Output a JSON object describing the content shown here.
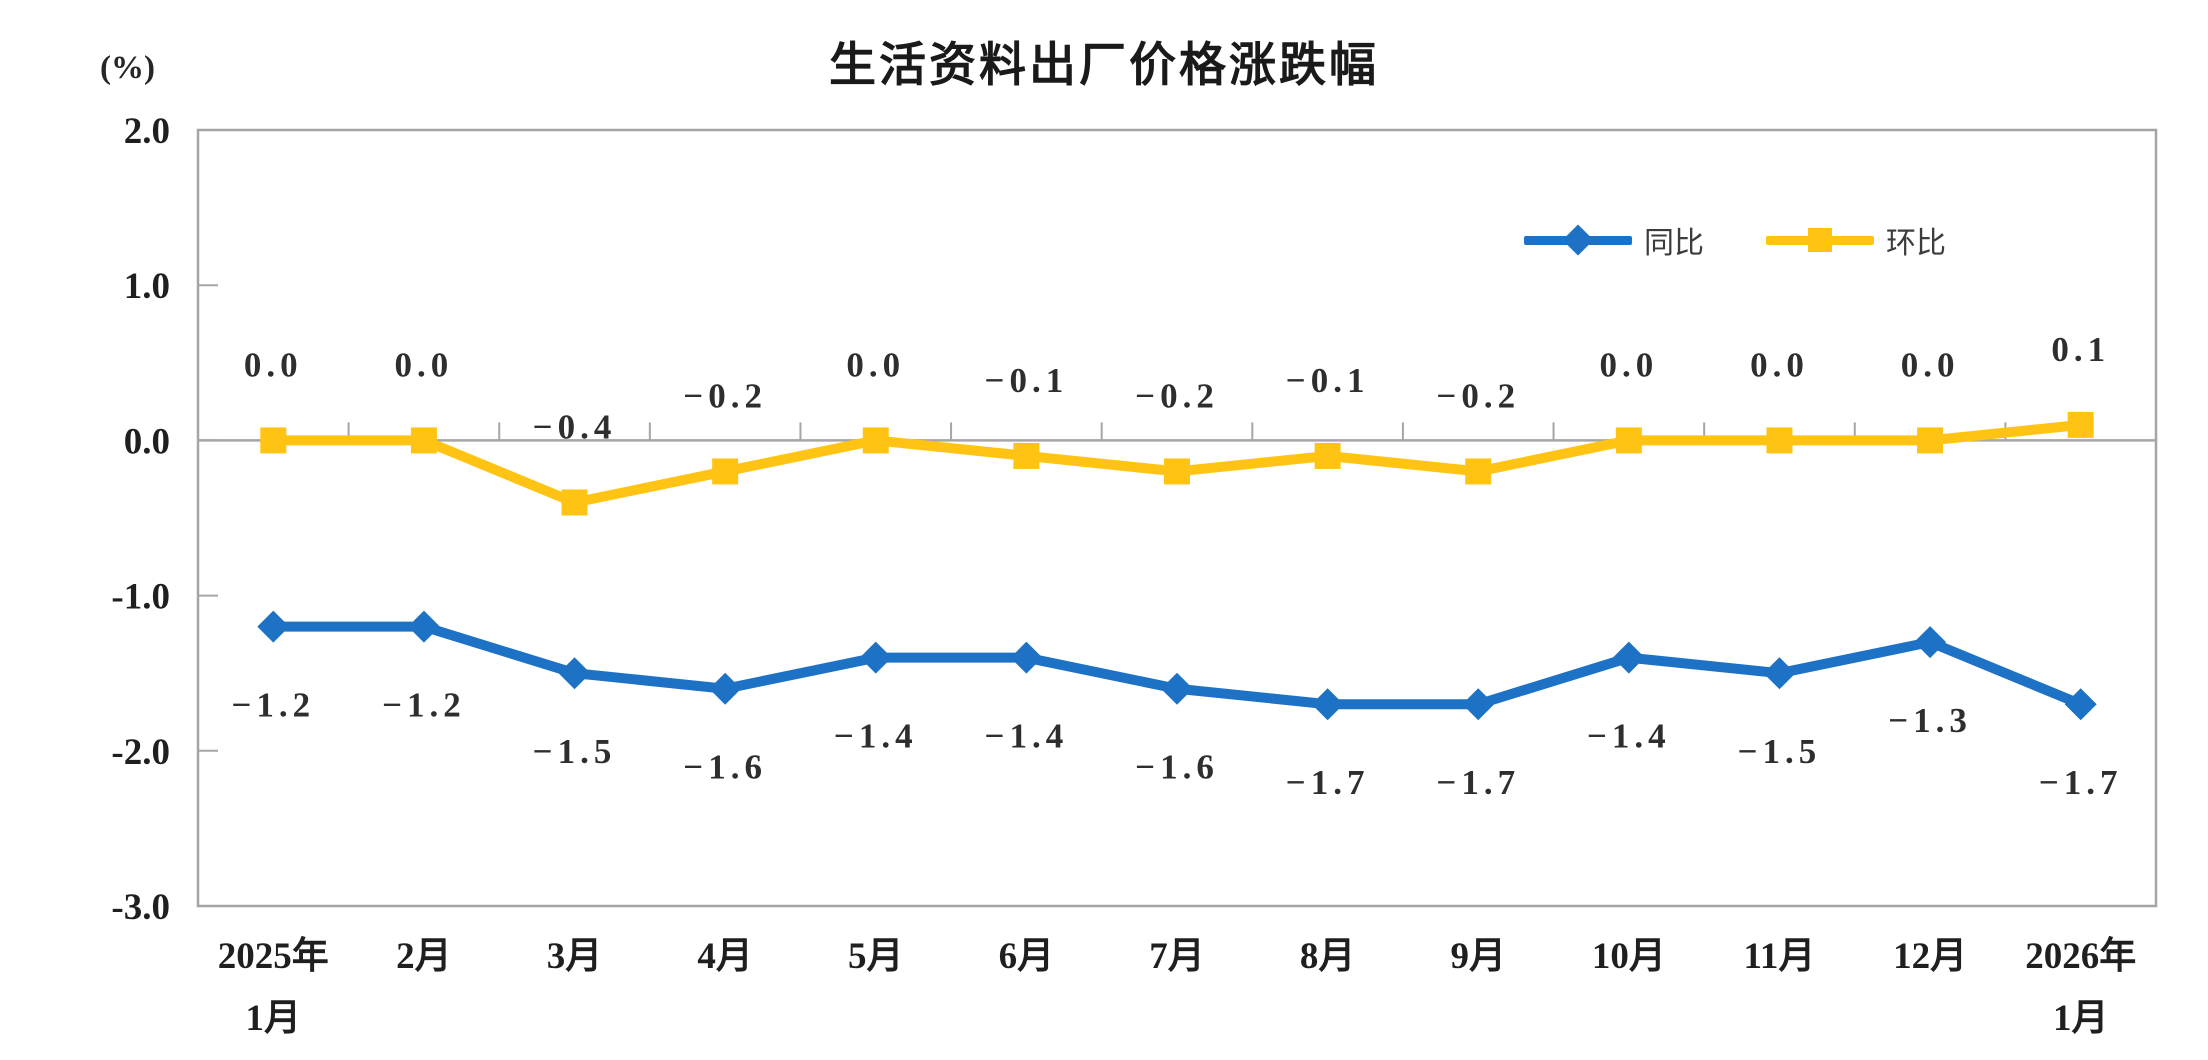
{
  "title": "生活资料出厂价格涨跌幅",
  "y_axis_unit": "(%)",
  "legend": {
    "items": [
      {
        "label": "同比",
        "marker": "diamond",
        "color": "#1e72c6"
      },
      {
        "label": "环比",
        "marker": "square",
        "color": "#ffc413"
      }
    ]
  },
  "colors": {
    "tongbi_blue": "#1e72c6",
    "huanbi_yellow": "#ffc413",
    "axis_gray": "#a5a5a5",
    "label_text": "#2e2e2e"
  },
  "chart_data": {
    "type": "line",
    "title": "生活资料出厂价格涨跌幅",
    "ylabel": "(%)",
    "xlabel": "",
    "grid": false,
    "legend_position": "top-right-inside",
    "ylim": [
      -3.0,
      2.0
    ],
    "y_ticks": [
      2.0,
      1.0,
      0.0,
      -1.0,
      -2.0,
      -3.0
    ],
    "categories": [
      "2025年|1月",
      "2月",
      "3月",
      "4月",
      "5月",
      "6月",
      "7月",
      "8月",
      "9月",
      "10月",
      "11月",
      "12月",
      "2026年|1月"
    ],
    "series": [
      {
        "name": "同比",
        "color": "#1e72c6",
        "marker": "diamond",
        "label_side": "below",
        "values": [
          -1.2,
          -1.2,
          -1.5,
          -1.6,
          -1.4,
          -1.4,
          -1.6,
          -1.7,
          -1.7,
          -1.4,
          -1.5,
          -1.3,
          -1.7
        ]
      },
      {
        "name": "环比",
        "color": "#ffc413",
        "marker": "square",
        "label_side": "above",
        "values": [
          0.0,
          0.0,
          -0.4,
          -0.2,
          0.0,
          -0.1,
          -0.2,
          -0.1,
          -0.2,
          0.0,
          0.0,
          0.0,
          0.1
        ]
      }
    ]
  }
}
